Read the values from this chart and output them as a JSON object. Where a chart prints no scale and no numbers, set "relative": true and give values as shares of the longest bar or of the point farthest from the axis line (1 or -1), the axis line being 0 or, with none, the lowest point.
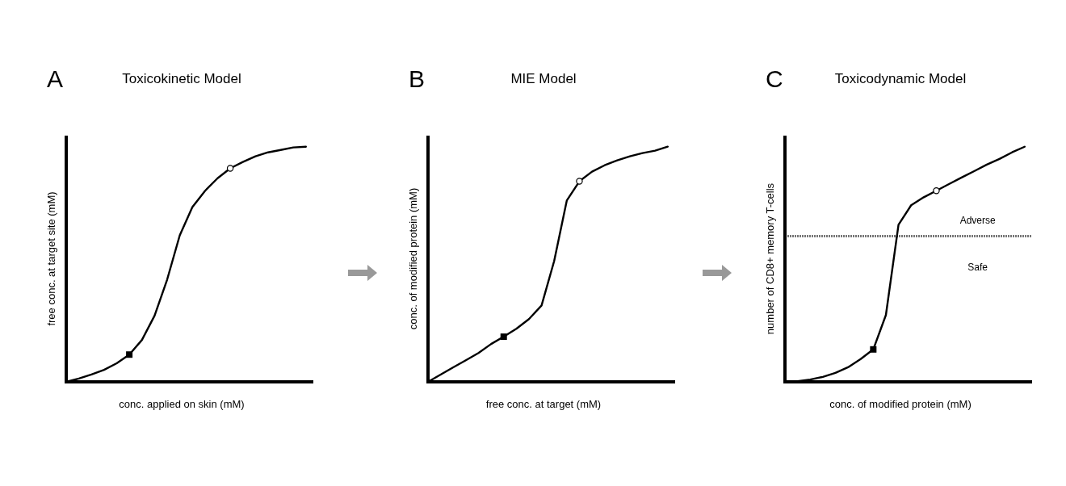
{
  "chart_data": [
    {
      "type": "line",
      "relative": true,
      "title": "Toxicokinetic Model",
      "xlabel": "conc. applied on skin (mM)",
      "ylabel": "free conc. at target site (mM)",
      "annotations": [
        "A"
      ],
      "categories": [
        null,
        null,
        null,
        null,
        null,
        null,
        null,
        null,
        null,
        null,
        null,
        null,
        null,
        null,
        null,
        null,
        null,
        null,
        null,
        null
      ],
      "line_style": "solid",
      "series": [
        {
          "type": "line",
          "color": "#000000",
          "values": [
            0,
            0.014,
            0.031,
            0.051,
            0.079,
            0.116,
            0.178,
            0.281,
            0.435,
            0.623,
            0.743,
            0.812,
            0.866,
            0.908,
            0.935,
            0.959,
            0.976,
            0.986,
            0.997,
            1
          ]
        }
      ]
    },
    {
      "type": "line",
      "relative": true,
      "title": "MIE Model",
      "xlabel": "free conc. at target (mM)",
      "ylabel": "conc. of modified protein (mM)",
      "annotations": [
        "B"
      ],
      "categories": [
        null,
        null,
        null,
        null,
        null,
        null,
        null,
        null,
        null,
        null,
        null,
        null,
        null,
        null,
        null,
        null,
        null,
        null,
        null,
        null
      ],
      "line_style": "solid",
      "series": [
        {
          "type": "line",
          "color": "#000000",
          "values": [
            0,
            0.031,
            0.062,
            0.092,
            0.123,
            0.161,
            0.192,
            0.226,
            0.267,
            0.325,
            0.514,
            0.771,
            0.853,
            0.894,
            0.921,
            0.942,
            0.959,
            0.973,
            0.983,
            1
          ]
        }
      ]
    },
    {
      "type": "line",
      "relative": true,
      "title": "Toxicodynamic Model",
      "xlabel": "conc. of modified protein (mM)",
      "ylabel": "number of CD8+ memory T-cells",
      "annotations": [
        "C",
        "Adverse",
        "Safe"
      ],
      "categories": [
        null,
        null,
        null,
        null,
        null,
        null,
        null,
        null,
        null,
        null,
        null,
        null,
        null,
        null,
        null,
        null,
        null,
        null,
        null,
        null
      ],
      "line_style": "solid",
      "ref_lines": [
        {
          "axis": "y",
          "value": 0.62,
          "label": null,
          "color": "#777777",
          "line_style": "dotted"
        }
      ],
      "series": [
        {
          "type": "line",
          "color": "#000000",
          "values": [
            0,
            0.003,
            0.01,
            0.021,
            0.038,
            0.062,
            0.097,
            0.138,
            0.284,
            0.668,
            0.751,
            0.785,
            0.813,
            0.841,
            0.869,
            0.896,
            0.924,
            0.948,
            0.976,
            1
          ]
        }
      ]
    }
  ]
}
